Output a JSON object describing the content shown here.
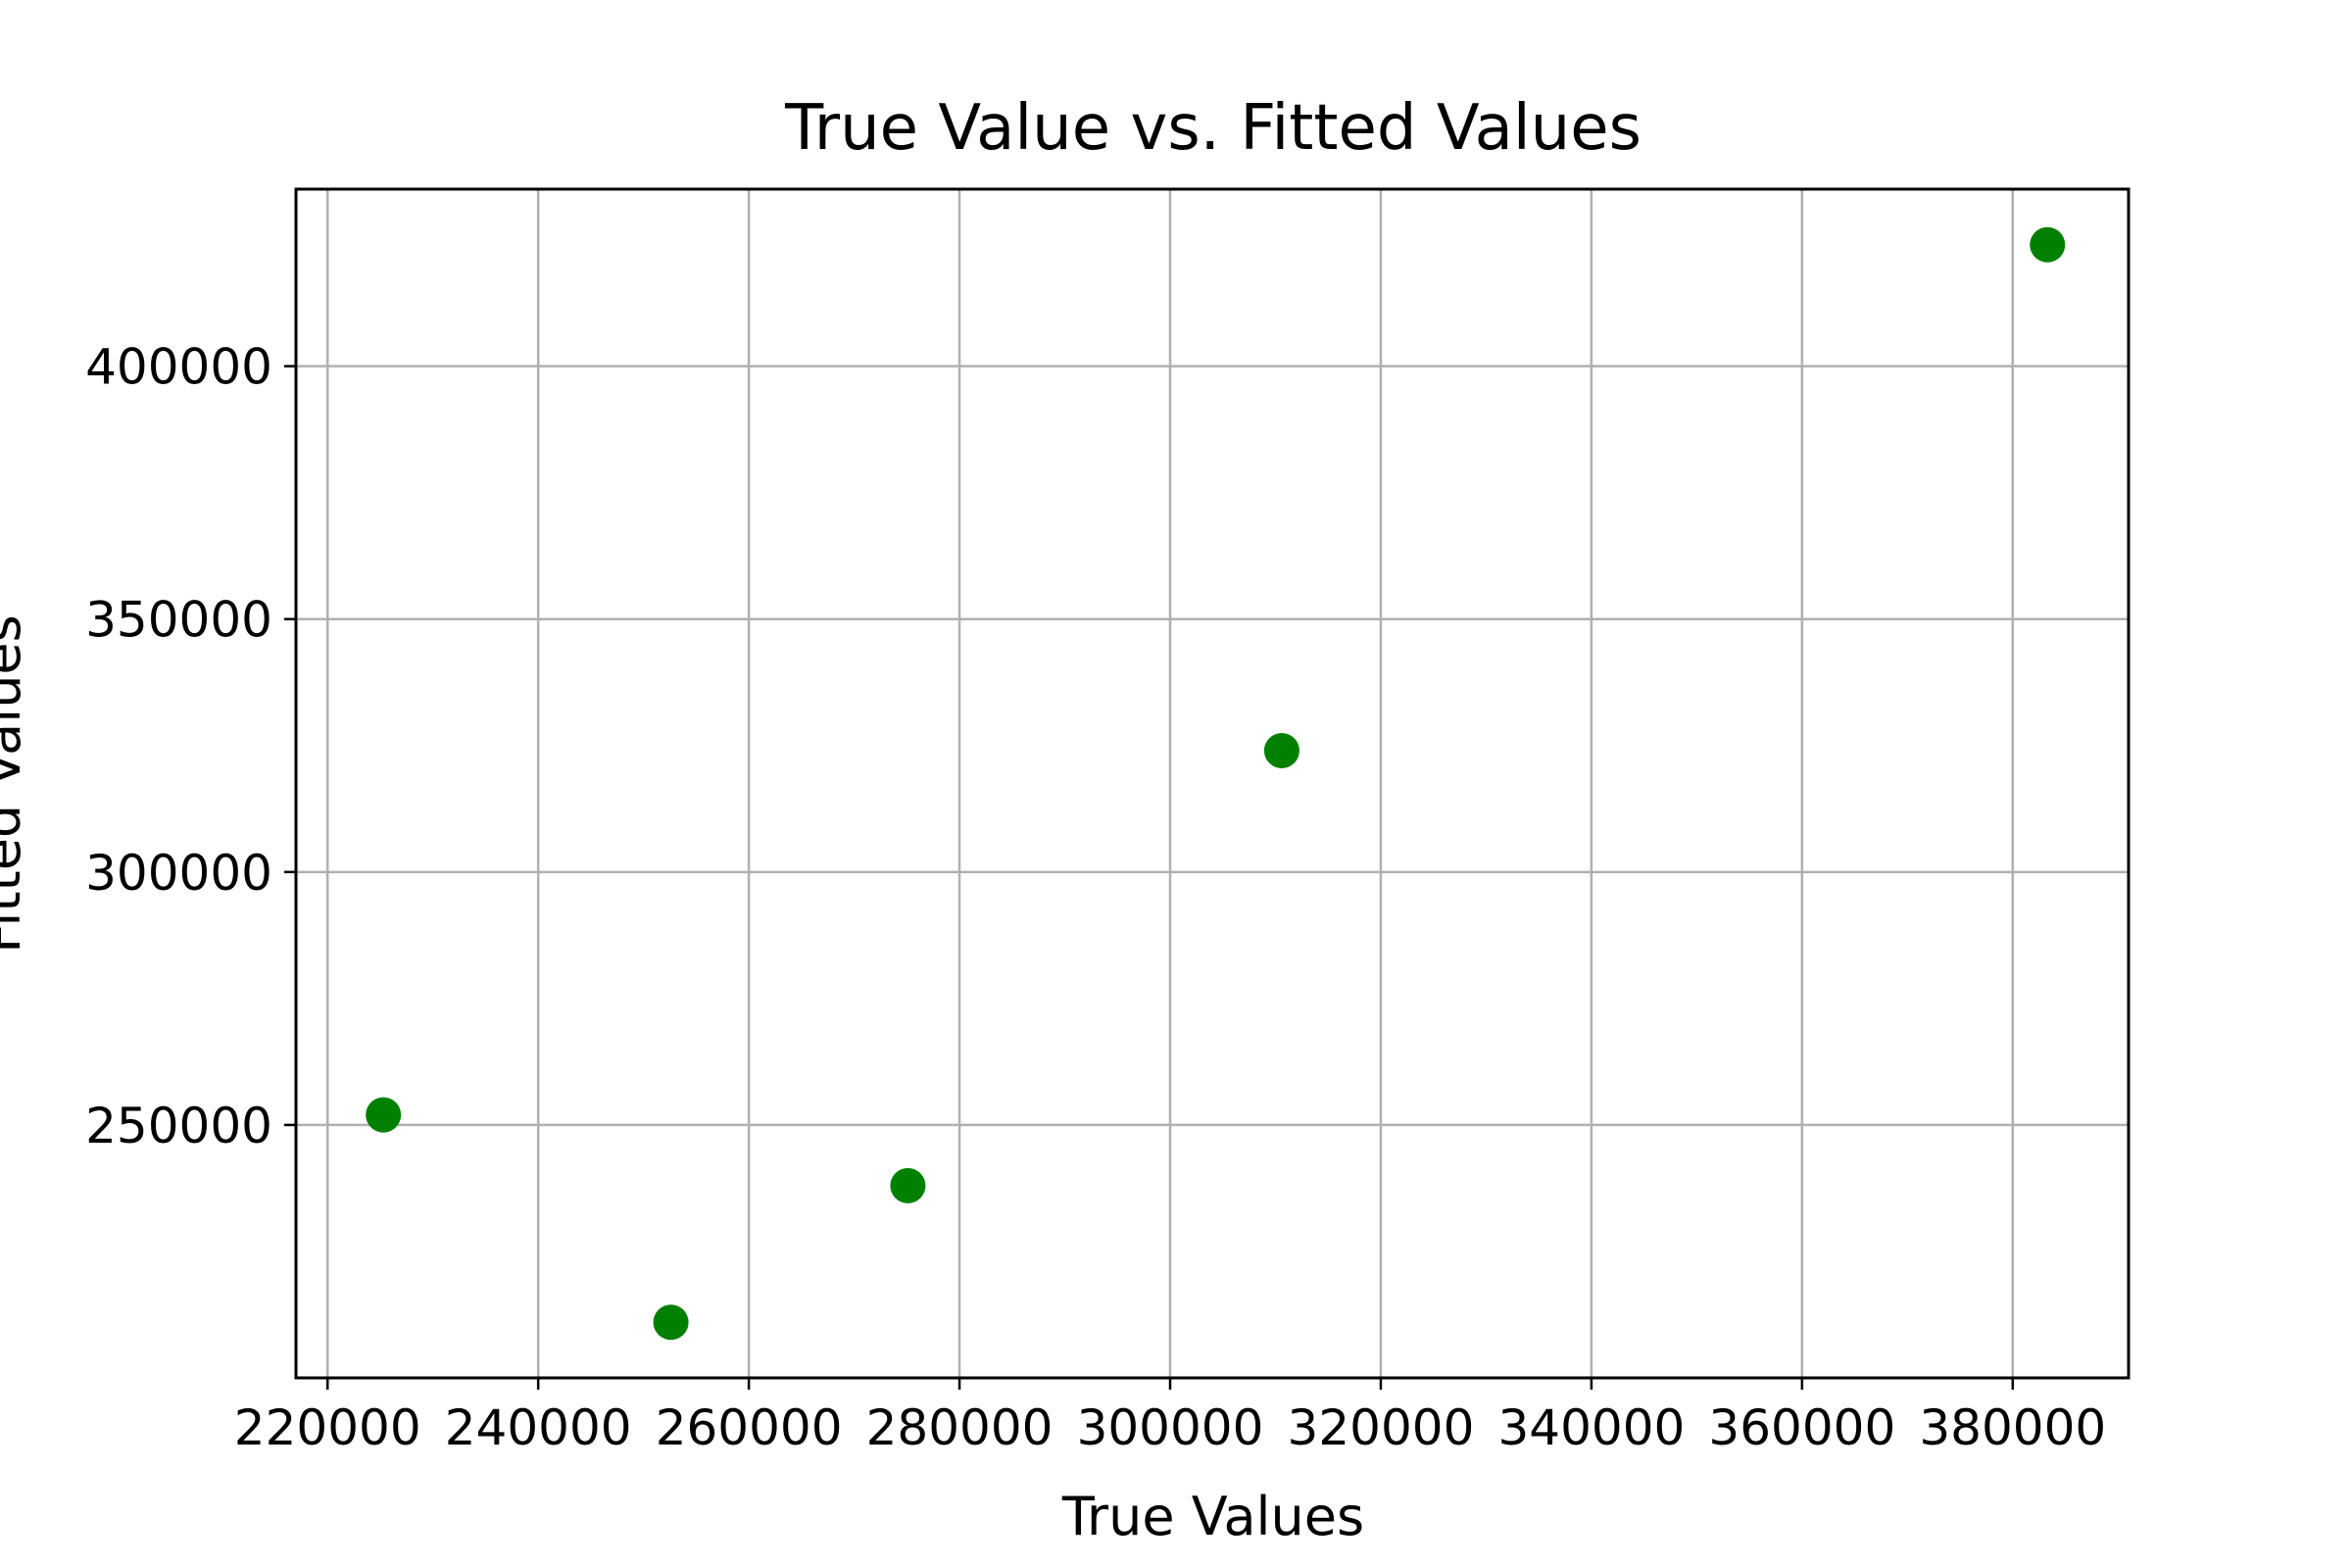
{
  "chart_data": {
    "type": "scatter",
    "title": "True Value vs. Fitted Values",
    "xlabel": "True Values",
    "ylabel": "Fitted Values",
    "xlim": [
      217000,
      391000
    ],
    "ylim": [
      200000,
      435000
    ],
    "xticks": [
      220000,
      240000,
      260000,
      280000,
      300000,
      320000,
      340000,
      360000,
      380000
    ],
    "yticks": [
      250000,
      300000,
      350000,
      400000
    ],
    "grid": true,
    "marker_color": "#008000",
    "grid_color": "#b0b0b0",
    "series": [
      {
        "x": [
          225300,
          252600,
          275100,
          310600,
          383300
        ],
        "y": [
          252000,
          211000,
          238000,
          324000,
          424000
        ]
      }
    ]
  }
}
